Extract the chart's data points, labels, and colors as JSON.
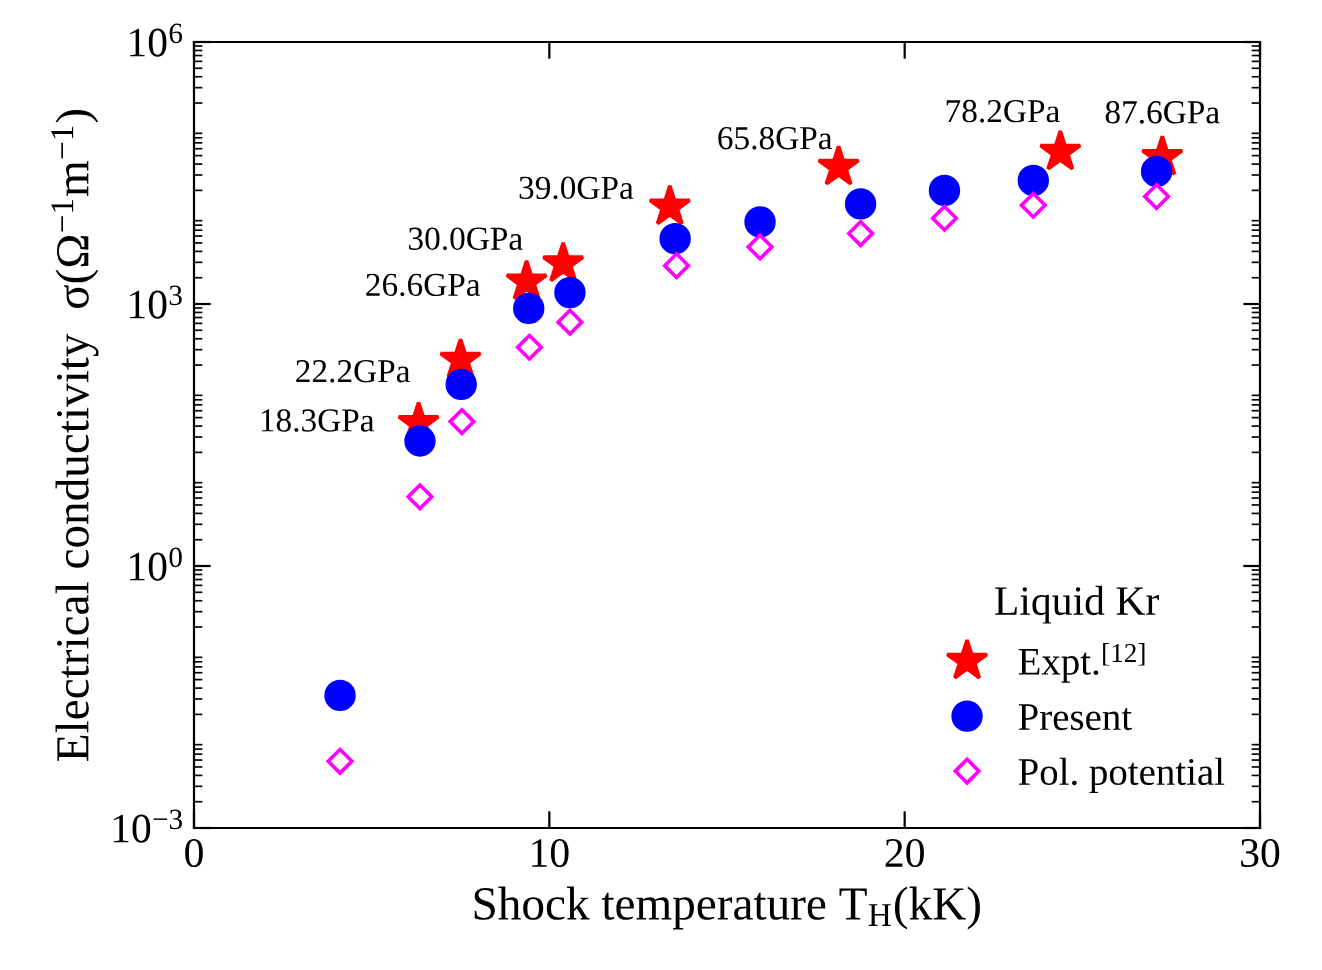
{
  "chart_data": {
    "type": "scatter",
    "xlabel": "Shock temperature T$_{H}$(kK)",
    "ylabel": "Electrical conductivity  σ(Ω$^{−1}$m$^{−1}$)",
    "legend_title": "Liquid Kr",
    "legend": "bottom right",
    "log": "y",
    "xlim": [
      0,
      30
    ],
    "xticks": [
      0,
      10,
      20,
      30
    ],
    "ylim": [
      0.001,
      1000000
    ],
    "yticks": [
      {
        "value": 0.001,
        "label": "10$^{−3}$"
      },
      {
        "value": 1,
        "label": "10$^{0}$"
      },
      {
        "value": 1000,
        "label": "10$^{3}$"
      },
      {
        "value": 1000000,
        "label": "10$^{6}$"
      }
    ],
    "grid": false,
    "series": [
      {
        "name": "Expt.$^{[12]}$",
        "color": "#ff0000",
        "marker": "star",
        "x": [
          6.32,
          7.5,
          9.36,
          10.39,
          13.39,
          18.14,
          24.38,
          27.25
        ],
        "values": [
          43,
          228,
          1800,
          2900,
          13000,
          37000,
          55000,
          48000
        ]
      },
      {
        "name": "Present",
        "color": "#0000ff",
        "marker": "circle",
        "x": [
          4.11,
          6.36,
          7.52,
          9.42,
          10.58,
          13.54,
          15.93,
          18.76,
          21.12,
          23.62,
          27.09
        ],
        "values": [
          0.033,
          27,
          120,
          890,
          1350,
          5600,
          8700,
          14000,
          20000,
          26000,
          33000
        ]
      },
      {
        "name": "Pol. potential",
        "color": "#ff00ff",
        "marker": "diamond",
        "x": [
          4.11,
          6.36,
          7.54,
          9.44,
          10.58,
          13.58,
          15.93,
          18.76,
          21.12,
          23.62,
          27.09
        ],
        "values": [
          0.0058,
          6.2,
          45,
          320,
          620,
          2750,
          4500,
          6400,
          9600,
          13500,
          17000
        ]
      }
    ],
    "annotations": [
      {
        "text": "18.3GPa",
        "x": 6.32,
        "y": 43
      },
      {
        "text": "22.2GPa",
        "x": 7.5,
        "y": 228
      },
      {
        "text": "26.6GPa",
        "x": 9.36,
        "y": 1800
      },
      {
        "text": "30.0GPa",
        "x": 10.39,
        "y": 2900
      },
      {
        "text": "39.0GPa",
        "x": 13.39,
        "y": 13000
      },
      {
        "text": "65.8GPa",
        "x": 18.14,
        "y": 37000
      },
      {
        "text": "78.2GPa",
        "x": 24.38,
        "y": 55000
      },
      {
        "text": "87.6GPa",
        "x": 27.25,
        "y": 48000
      }
    ]
  }
}
